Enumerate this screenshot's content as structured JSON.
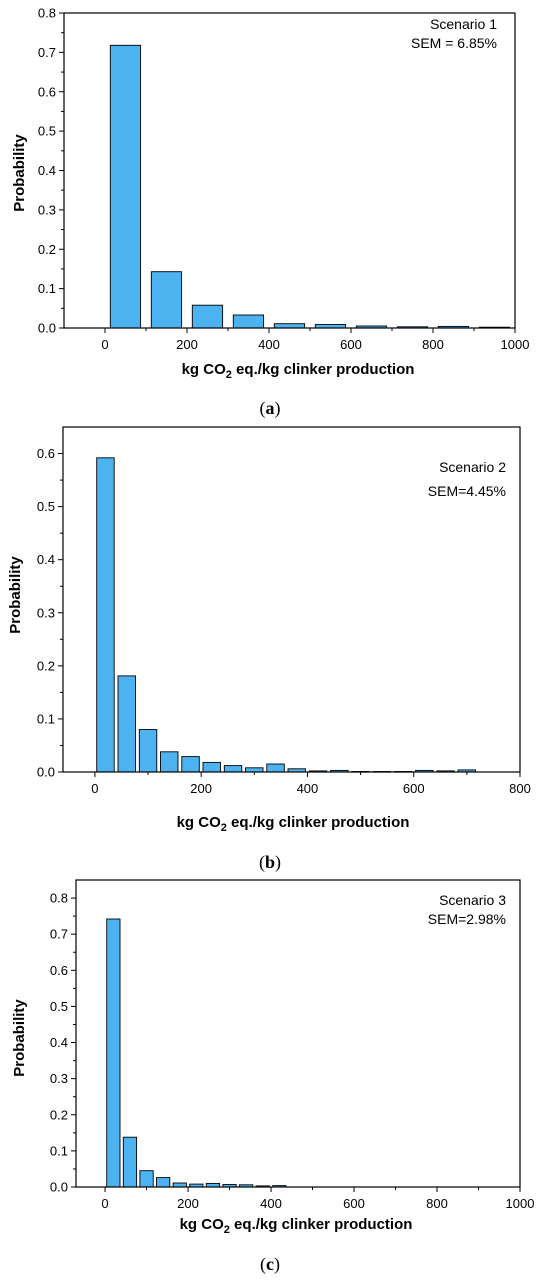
{
  "chart_data": [
    {
      "type": "bar",
      "panel": "a",
      "xlabel": "kg CO2 eq./kg clinker production",
      "ylabel": "Probability",
      "xlim": [
        -100,
        1000
      ],
      "ylim": [
        0,
        0.8
      ],
      "xticks": [
        0,
        200,
        400,
        600,
        800,
        1000
      ],
      "yticks": [
        0.0,
        0.1,
        0.2,
        0.3,
        0.4,
        0.5,
        0.6,
        0.7,
        0.8
      ],
      "x": [
        50,
        150,
        250,
        350,
        450,
        550,
        650,
        750,
        850,
        950
      ],
      "values": [
        0.718,
        0.143,
        0.058,
        0.033,
        0.011,
        0.009,
        0.005,
        0.003,
        0.004,
        0.002
      ],
      "bar_width": 74,
      "annotation": [
        "Scenario 1",
        "SEM = 6.85%"
      ],
      "caption": "a"
    },
    {
      "type": "bar",
      "panel": "b",
      "xlabel": "kg CO2 eq./kg clinker production",
      "ylabel": "Probability",
      "xlim": [
        -60,
        800
      ],
      "ylim": [
        0,
        0.65
      ],
      "xticks": [
        0,
        200,
        400,
        600,
        800
      ],
      "yticks": [
        0.0,
        0.1,
        0.2,
        0.3,
        0.4,
        0.5,
        0.6
      ],
      "x": [
        20,
        60,
        100,
        140,
        180,
        220,
        260,
        300,
        340,
        380,
        420,
        460,
        500,
        540,
        580,
        620,
        660,
        700
      ],
      "values": [
        0.592,
        0.181,
        0.08,
        0.038,
        0.029,
        0.018,
        0.012,
        0.008,
        0.015,
        0.006,
        0.002,
        0.003,
        0.001,
        0.001,
        0.001,
        0.003,
        0.002,
        0.004
      ],
      "bar_width": 33,
      "annotation": [
        "Scenario 2",
        "SEM=4.45%"
      ],
      "caption": "b"
    },
    {
      "type": "bar",
      "panel": "c",
      "xlabel": "kg CO2 eq./kg clinker production",
      "ylabel": "Probability",
      "xlim": [
        -70,
        1000
      ],
      "ylim": [
        0,
        0.85
      ],
      "xticks": [
        0,
        200,
        400,
        600,
        800,
        1000
      ],
      "yticks": [
        0.0,
        0.1,
        0.2,
        0.3,
        0.4,
        0.5,
        0.6,
        0.7,
        0.8
      ],
      "x": [
        20,
        60,
        100,
        140,
        180,
        220,
        260,
        300,
        340,
        380,
        420
      ],
      "values": [
        0.742,
        0.138,
        0.045,
        0.026,
        0.011,
        0.008,
        0.01,
        0.007,
        0.006,
        0.003,
        0.004
      ],
      "bar_width": 32,
      "annotation": [
        "Scenario 3",
        "SEM=2.98%"
      ],
      "caption": "c"
    }
  ],
  "colors": {
    "bar": "#4db3f0",
    "axis": "#000000"
  }
}
